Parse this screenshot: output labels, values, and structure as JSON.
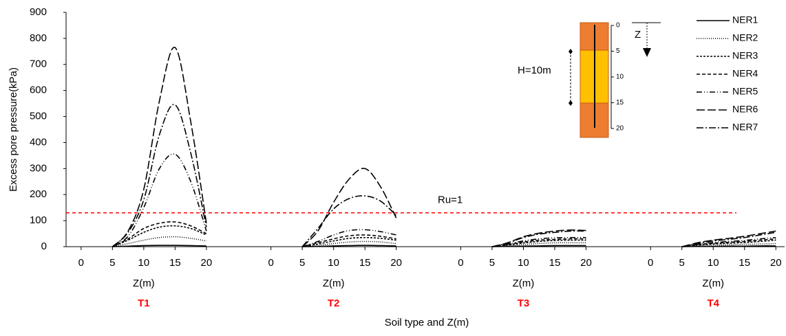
{
  "chart_data": {
    "type": "line",
    "ylabel": "Excess pore pressure(kPa)",
    "xlabel": "Soil type and Z(m)",
    "ylim": [
      0,
      900
    ],
    "yticks": [
      0,
      100,
      200,
      300,
      400,
      500,
      600,
      700,
      800,
      900
    ],
    "groups": [
      {
        "name": "T1",
        "xlabel": "Z(m)",
        "xlim": [
          -2.4,
          27.9
        ],
        "xticks": [
          0,
          5,
          10,
          15,
          20
        ],
        "x": [
          5,
          7.5,
          10,
          12.5,
          15,
          17.5,
          20
        ]
      },
      {
        "name": "T2",
        "xlabel": "Z(m)",
        "xlim": [
          -2.4,
          27.9
        ],
        "xticks": [
          0,
          5,
          10,
          15,
          20
        ],
        "x": [
          5,
          7.5,
          10,
          12.5,
          15,
          17.5,
          20
        ]
      },
      {
        "name": "T3",
        "xlabel": "Z(m)",
        "xlim": [
          -2.4,
          27.9
        ],
        "xticks": [
          0,
          5,
          10,
          15,
          20
        ],
        "x": [
          5,
          7.5,
          10,
          12.5,
          15,
          17.5,
          20
        ]
      },
      {
        "name": "T4",
        "xlabel": "Z(m)",
        "xlim": [
          -2.4,
          21.4
        ],
        "xticks": [
          0,
          5,
          10,
          15,
          20
        ],
        "x": [
          5,
          7.5,
          10,
          12.5,
          15,
          17.5,
          20
        ]
      }
    ],
    "series": [
      {
        "name": "NER1",
        "color": "#000000",
        "dash": "none",
        "values": [
          [
            0,
            2,
            4,
            5,
            5,
            4,
            3
          ],
          [
            0,
            1,
            3,
            4,
            5,
            4,
            3
          ],
          [
            0,
            1,
            2,
            3,
            4,
            4,
            4
          ],
          [
            0,
            1,
            1,
            2,
            2,
            3,
            3
          ]
        ]
      },
      {
        "name": "NER2",
        "color": "#000000",
        "dash": "1,2",
        "values": [
          [
            0,
            12,
            25,
            35,
            38,
            32,
            22
          ],
          [
            0,
            5,
            12,
            18,
            20,
            18,
            12
          ],
          [
            0,
            3,
            8,
            12,
            15,
            15,
            15
          ],
          [
            0,
            3,
            5,
            7,
            9,
            10,
            12
          ]
        ]
      },
      {
        "name": "NER3",
        "color": "#000000",
        "dash": "3,2",
        "values": [
          [
            0,
            25,
            55,
            75,
            80,
            70,
            45
          ],
          [
            0,
            10,
            22,
            32,
            35,
            32,
            25
          ],
          [
            0,
            6,
            14,
            20,
            24,
            25,
            25
          ],
          [
            0,
            6,
            10,
            13,
            16,
            20,
            25
          ]
        ]
      },
      {
        "name": "NER4",
        "color": "#000000",
        "dash": "5,3",
        "values": [
          [
            0,
            30,
            70,
            90,
            95,
            80,
            50
          ],
          [
            0,
            15,
            30,
            42,
            45,
            40,
            30
          ],
          [
            0,
            8,
            18,
            25,
            28,
            30,
            30
          ],
          [
            0,
            8,
            13,
            17,
            20,
            25,
            30
          ]
        ]
      },
      {
        "name": "NER5",
        "color": "#000000",
        "dash": "8,3,1,3,1,3",
        "values": [
          [
            0,
            40,
            150,
            300,
            355,
            250,
            60
          ],
          [
            0,
            20,
            45,
            62,
            65,
            58,
            45
          ],
          [
            0,
            10,
            22,
            30,
            34,
            35,
            35
          ],
          [
            0,
            10,
            16,
            20,
            24,
            30,
            35
          ]
        ]
      },
      {
        "name": "NER6",
        "color": "#000000",
        "dash": "12,4",
        "values": [
          [
            0,
            60,
            220,
            560,
            765,
            480,
            90
          ],
          [
            0,
            60,
            170,
            260,
            300,
            230,
            110
          ],
          [
            0,
            15,
            38,
            52,
            60,
            64,
            62
          ],
          [
            0,
            15,
            25,
            32,
            40,
            50,
            60
          ]
        ]
      },
      {
        "name": "NER7",
        "color": "#000000",
        "dash": "10,3,2,3",
        "values": [
          [
            0,
            55,
            180,
            430,
            545,
            360,
            75
          ],
          [
            0,
            70,
            145,
            185,
            195,
            175,
            120
          ],
          [
            0,
            14,
            35,
            48,
            55,
            60,
            60
          ],
          [
            0,
            12,
            22,
            28,
            35,
            45,
            55
          ]
        ]
      }
    ],
    "reference_line": {
      "label": "Ru=1",
      "value": 130,
      "color": "#ff0000"
    },
    "inset": {
      "depth_ticks": [
        0,
        5,
        10,
        15,
        20
      ],
      "thickness_label": "H=10m",
      "depth_label": "Z"
    }
  }
}
